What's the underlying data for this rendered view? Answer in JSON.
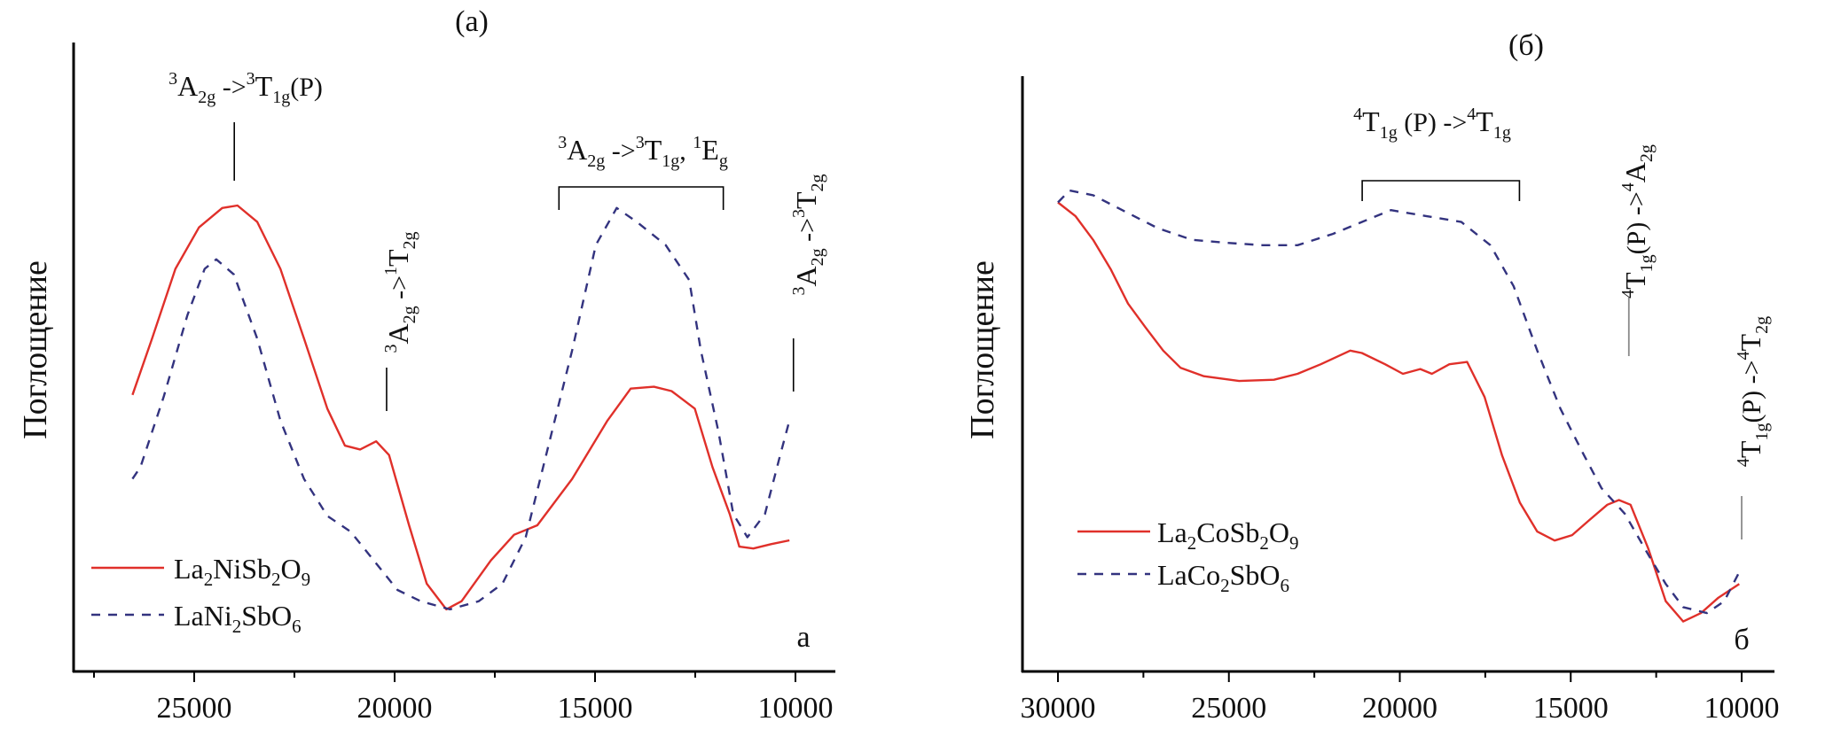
{
  "chart_data": [
    {
      "type": "line",
      "panel_title": "(a)",
      "corner_label": "а",
      "ylabel": "Поглощение",
      "xlabel": "",
      "xlim": [
        28000,
        9000
      ],
      "ylim": [
        0,
        1
      ],
      "x_reversed": true,
      "grid": false,
      "xticks": [
        25000,
        20000,
        15000,
        10000
      ],
      "xtick_labels": [
        "25000",
        "20000",
        "15000",
        "10000"
      ],
      "minor_xticks": [
        27500,
        22500,
        17500,
        12500
      ],
      "legend": {
        "placement": "bottom-left"
      },
      "annotations": [
        {
          "id": "ann-a1",
          "kind": "tick",
          "base": "3",
          "main": "A",
          "sub": "2g",
          "arrow": " ->",
          "sup2": "3",
          "main2": "T",
          "sub2": "1g",
          "tail": "(P)",
          "x": 24000
        },
        {
          "id": "ann-a2",
          "kind": "bracket",
          "base": "3",
          "main": "A",
          "sub": "2g",
          "arrow": " ->",
          "sup2": "3",
          "main2": "T",
          "sub2": "1g",
          "tail": ", ",
          "sup3": "1",
          "main3": "E",
          "sub3": "g",
          "x_range": [
            15900,
            11800
          ]
        },
        {
          "id": "ann-a3",
          "kind": "rotated",
          "base": "3",
          "main": "A",
          "sub": "2g",
          "arrow": " ->",
          "sup2": "1",
          "main2": "T",
          "sub2": "2g",
          "x": 20200
        },
        {
          "id": "ann-a4",
          "kind": "rotated",
          "base": "3",
          "main": "A",
          "sub": "2g",
          "arrow": " ->",
          "sup2": "3",
          "main2": "T",
          "sub2": "2g",
          "x": 10050
        }
      ],
      "series": [
        {
          "name": "La2NiSb2O9",
          "legend_main": "La",
          "legend_parts": [
            [
              "La",
              ""
            ],
            [
              "2",
              "sub"
            ],
            [
              "NiSb",
              ""
            ],
            [
              "2",
              "sub"
            ],
            [
              "O",
              ""
            ],
            [
              "9",
              "sub"
            ]
          ],
          "style": "solid",
          "color": "#e0302a",
          "x": [
            26540,
            26050,
            25470,
            24880,
            24300,
            23920,
            23430,
            22850,
            22260,
            21680,
            21240,
            20860,
            20460,
            20140,
            19640,
            19200,
            18710,
            18330,
            17600,
            17020,
            16440,
            15570,
            14690,
            14110,
            13530,
            13090,
            12510,
            12070,
            11640,
            11400,
            11050,
            10610,
            10150
          ],
          "y": [
            0.441,
            0.531,
            0.642,
            0.708,
            0.739,
            0.743,
            0.717,
            0.642,
            0.531,
            0.419,
            0.36,
            0.354,
            0.367,
            0.345,
            0.233,
            0.14,
            0.099,
            0.112,
            0.177,
            0.218,
            0.233,
            0.307,
            0.4,
            0.451,
            0.454,
            0.447,
            0.419,
            0.326,
            0.251,
            0.199,
            0.196,
            0.203,
            0.209
          ]
        },
        {
          "name": "LaNi2SbO6",
          "legend_parts": [
            [
              "LaNi",
              ""
            ],
            [
              "2",
              "sub"
            ],
            [
              "SbO",
              ""
            ],
            [
              "6",
              "sub"
            ]
          ],
          "style": "dashed",
          "color": "#33337f",
          "x": [
            26540,
            26340,
            25760,
            25170,
            24740,
            24450,
            24010,
            23430,
            22850,
            22260,
            21680,
            21100,
            20520,
            19930,
            19350,
            18620,
            17900,
            17310,
            16730,
            16150,
            15570,
            14980,
            14460,
            13960,
            13240,
            12650,
            12360,
            11920,
            11550,
            11200,
            10760,
            10380,
            10150
          ],
          "y": [
            0.307,
            0.326,
            0.438,
            0.568,
            0.642,
            0.657,
            0.633,
            0.531,
            0.4,
            0.307,
            0.248,
            0.223,
            0.177,
            0.13,
            0.112,
            0.099,
            0.112,
            0.14,
            0.214,
            0.363,
            0.512,
            0.68,
            0.739,
            0.717,
            0.68,
            0.624,
            0.512,
            0.382,
            0.251,
            0.214,
            0.251,
            0.345,
            0.4
          ]
        }
      ]
    },
    {
      "type": "line",
      "panel_title": "(б)",
      "corner_label": "б",
      "ylabel": "Поглощение",
      "xlabel": "",
      "xlim": [
        31000,
        9000
      ],
      "ylim": [
        0,
        1
      ],
      "x_reversed": true,
      "grid": false,
      "xticks": [
        30000,
        25000,
        20000,
        15000,
        10000
      ],
      "xtick_labels": [
        "30000",
        "25000",
        "20000",
        "15000",
        "10000"
      ],
      "minor_xticks": [
        27500,
        22500,
        17500,
        12500
      ],
      "legend": {
        "placement": "bottom-left"
      },
      "annotations": [
        {
          "id": "ann-b1",
          "kind": "bracket",
          "base": "4",
          "main": "T",
          "sub": "1g",
          "arrow": " (P) ->",
          "sup2": "4",
          "main2": "T",
          "sub2": "1g",
          "x_range": [
            21100,
            16500
          ]
        },
        {
          "id": "ann-b2",
          "kind": "rotated",
          "base": "4",
          "main": "T",
          "sub": "1g",
          "arrow": "(P) -",
          "sup2": "4",
          "main2": "A",
          "sub2": "2g",
          "pre_arrow": ">",
          "x": 13300
        },
        {
          "id": "ann-b3",
          "kind": "rotated",
          "base": "4",
          "main": "T",
          "sub": "1g",
          "arrow": "(P) -",
          "sup2": "4",
          "main2": "T",
          "sub2": "2g",
          "pre_arrow": ">",
          "x": 10000
        }
      ],
      "series": [
        {
          "name": "La2CoSb2O9",
          "legend_parts": [
            [
              "La",
              ""
            ],
            [
              "2",
              "sub"
            ],
            [
              "CoSb",
              ""
            ],
            [
              "2",
              "sub"
            ],
            [
              "O",
              ""
            ],
            [
              "9",
              "sub"
            ]
          ],
          "style": "solid",
          "color": "#e0302a",
          "x": [
            30000,
            29490,
            28970,
            28460,
            27950,
            27440,
            26920,
            26410,
            25730,
            24700,
            23680,
            22990,
            22310,
            21450,
            21110,
            20430,
            19910,
            19400,
            19060,
            18550,
            18030,
            17520,
            17010,
            16490,
            15980,
            15470,
            14960,
            14440,
            13930,
            13590,
            13250,
            12730,
            12220,
            11710,
            11190,
            10680,
            10070
          ],
          "y": [
            0.788,
            0.765,
            0.725,
            0.676,
            0.618,
            0.578,
            0.539,
            0.51,
            0.496,
            0.488,
            0.49,
            0.5,
            0.516,
            0.539,
            0.535,
            0.516,
            0.5,
            0.508,
            0.5,
            0.516,
            0.52,
            0.461,
            0.363,
            0.284,
            0.235,
            0.22,
            0.229,
            0.255,
            0.28,
            0.288,
            0.28,
            0.206,
            0.118,
            0.084,
            0.098,
            0.124,
            0.147
          ]
        },
        {
          "name": "LaCo2SbO6",
          "legend_parts": [
            [
              "LaCo",
              ""
            ],
            [
              "2",
              "sub"
            ],
            [
              "SbO",
              ""
            ],
            [
              "6",
              "sub"
            ]
          ],
          "style": "dashed",
          "color": "#33337f",
          "x": [
            30000,
            29660,
            28970,
            28120,
            27090,
            26070,
            25040,
            24020,
            22990,
            21960,
            21110,
            20260,
            19230,
            18200,
            17350,
            16670,
            15980,
            15300,
            14610,
            14100,
            13420,
            12730,
            12220,
            11710,
            11020,
            10510,
            10070
          ],
          "y": [
            0.788,
            0.808,
            0.8,
            0.775,
            0.745,
            0.725,
            0.72,
            0.716,
            0.716,
            0.735,
            0.755,
            0.775,
            0.765,
            0.755,
            0.716,
            0.647,
            0.539,
            0.441,
            0.363,
            0.308,
            0.265,
            0.196,
            0.147,
            0.108,
            0.098,
            0.118,
            0.167
          ]
        }
      ]
    }
  ]
}
